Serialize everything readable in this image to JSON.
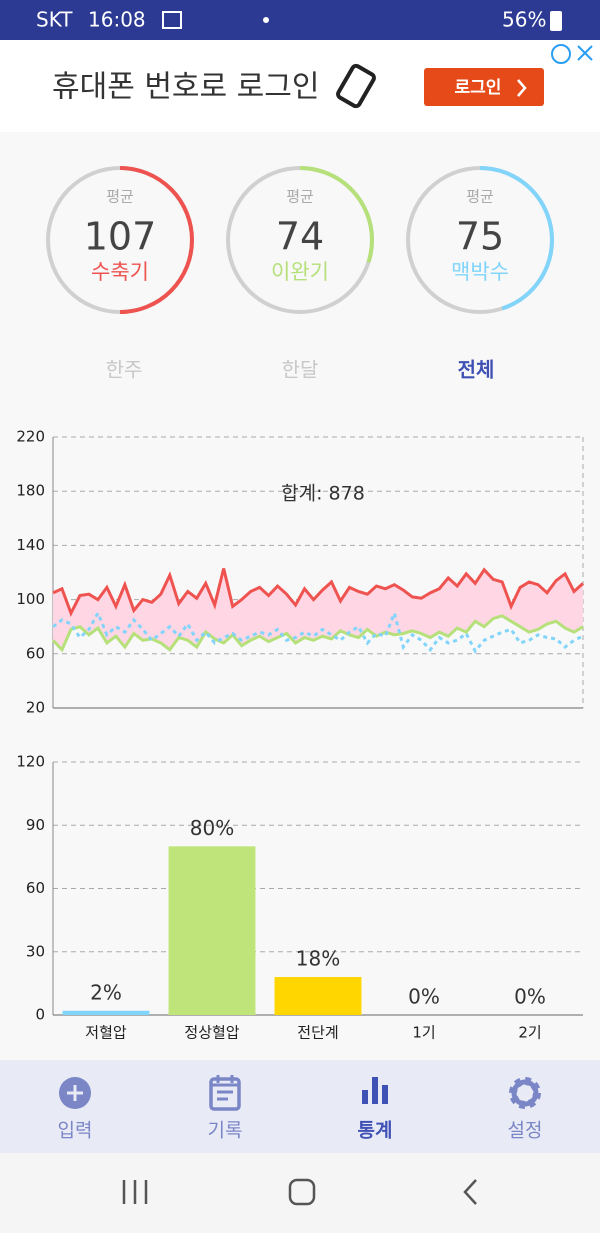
{
  "status_bar": {
    "carrier": "SKT",
    "time": "16:08",
    "battery": "56%"
  },
  "ad": {
    "text": "휴대폰 번호로 로그인",
    "button": "로그인"
  },
  "stats": [
    {
      "label": "평균",
      "value": 107,
      "name": "수축기",
      "color": "#ef5350"
    },
    {
      "label": "평균",
      "value": 74,
      "name": "이완기",
      "color": "#b5e07a"
    },
    {
      "label": "평균",
      "value": 75,
      "name": "맥박수",
      "color": "#81d4fa"
    }
  ],
  "tabs": {
    "items": [
      "한주",
      "한달",
      "전체"
    ],
    "selected": 2
  },
  "charts": [
    {
      "type": "line",
      "annotation": "합계: 878",
      "ylim": [
        20,
        220
      ],
      "yticks": [
        20,
        60,
        100,
        140,
        180,
        220
      ],
      "grid": true,
      "fill_between": "#ffd6e4",
      "series": [
        {
          "color": "#ef5350",
          "values": [
            105,
            108,
            90,
            103,
            104,
            100,
            109,
            95,
            111,
            92,
            100,
            98,
            104,
            118,
            97,
            106,
            101,
            112,
            96,
            123,
            95,
            100,
            106,
            109,
            103,
            110,
            104,
            96,
            108,
            100,
            107,
            113,
            99,
            109,
            106,
            104,
            110,
            108,
            111,
            107,
            102,
            101,
            105,
            108,
            116,
            110,
            119,
            112,
            122,
            115,
            113,
            95,
            109,
            113,
            111,
            105,
            114,
            119,
            106,
            112
          ]
        },
        {
          "color": "#b5e07a",
          "values": [
            70,
            63,
            78,
            80,
            74,
            79,
            68,
            73,
            65,
            75,
            70,
            71,
            68,
            63,
            72,
            70,
            65,
            76,
            71,
            68,
            74,
            66,
            70,
            73,
            69,
            72,
            75,
            68,
            72,
            70,
            73,
            71,
            77,
            74,
            72,
            78,
            73,
            76,
            74,
            75,
            77,
            75,
            72,
            76,
            73,
            79,
            76,
            84,
            80,
            86,
            88,
            84,
            80,
            76,
            78,
            82,
            84,
            79,
            76,
            80
          ]
        },
        {
          "color": "#81d4fa",
          "dashed": true,
          "values": [
            80,
            85,
            82,
            72,
            78,
            90,
            74,
            80,
            76,
            85,
            78,
            70,
            75,
            80,
            73,
            82,
            70,
            76,
            68,
            72,
            75,
            70,
            73,
            76,
            74,
            78,
            70,
            72,
            76,
            73,
            78,
            74,
            70,
            76,
            80,
            68,
            75,
            73,
            90,
            65,
            74,
            70,
            63,
            72,
            68,
            70,
            75,
            62,
            70,
            73,
            76,
            78,
            68,
            70,
            74,
            72,
            71,
            65,
            70,
            73
          ]
        }
      ]
    },
    {
      "type": "bar",
      "categories": [
        "저혈압",
        "정상혈압",
        "전단계",
        "1기",
        "2기"
      ],
      "values": [
        2,
        80,
        18,
        0,
        0
      ],
      "value_labels": [
        "2%",
        "80%",
        "18%",
        "0%",
        "0%"
      ],
      "colors": [
        "#81d4fa",
        "#bfe57a",
        "#ffd600",
        "#cccccc",
        "#cccccc"
      ],
      "ylim": [
        0,
        120
      ],
      "yticks": [
        0,
        30,
        60,
        90,
        120
      ],
      "grid": true
    }
  ],
  "bottom_nav": {
    "items": [
      "입력",
      "기록",
      "통계",
      "설정"
    ],
    "selected": 2
  }
}
